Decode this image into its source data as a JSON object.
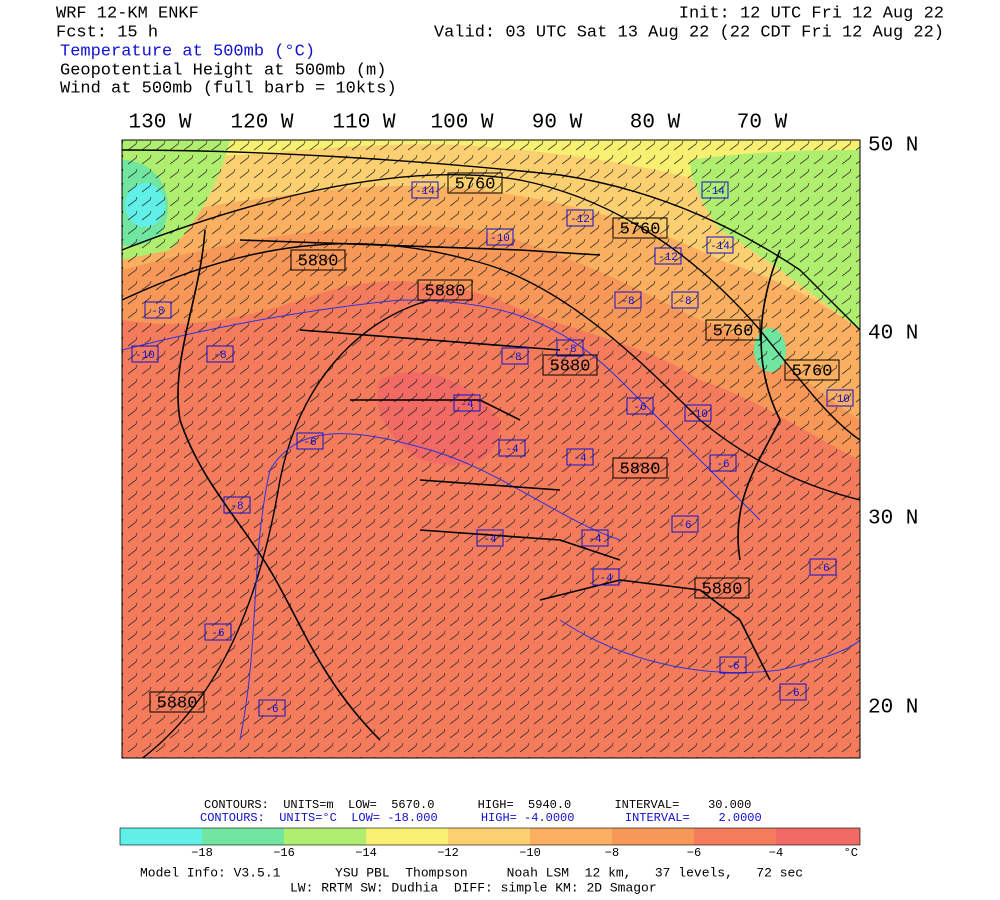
{
  "header": {
    "model": "WRF 12-KM ENKF",
    "init": "Init: 12 UTC Fri 12 Aug 22",
    "fcst": "Fcst:   15 h",
    "valid": "Valid: 03 UTC Sat 13 Aug 22 (22 CDT Fri 12 Aug 22)",
    "fields": [
      "Temperature at 500mb (°C)",
      "Geopotential Height at 500mb (m)",
      "Wind at 500mb (full barb = 10kts)"
    ]
  },
  "lon_labels": [
    "130 W",
    "120 W",
    "110 W",
    "100 W",
    "90 W",
    "80 W",
    "70 W"
  ],
  "lat_labels": [
    "50 N",
    "40 N",
    "30 N",
    "20 N"
  ],
  "height_labels": [
    "5760",
    "5760",
    "5760",
    "5760",
    "5880",
    "5880",
    "5880",
    "5880",
    "5880",
    "5880"
  ],
  "temp_labels": [
    "-14",
    "-14",
    "-14",
    "-12",
    "-12",
    "-10",
    "-10",
    "-10",
    "-10",
    "-8",
    "-8",
    "-8",
    "-8",
    "-8",
    "-8",
    "-8",
    "-6",
    "-6",
    "-6",
    "-6",
    "-6",
    "-6",
    "-6",
    "-6",
    "-6",
    "-4",
    "-4",
    "-4",
    "-4",
    "-4",
    "-4"
  ],
  "footer": {
    "height_contours": "CONTOURS:  UNITS=m  LOW=  5670.0      HIGH=  5940.0      INTERVAL=    30.000",
    "temp_contours": "CONTOURS:  UNITS=°C  LOW= -18.000      HIGH= -4.0000       INTERVAL=    2.0000",
    "colorbar_ticks": [
      "−18",
      "−16",
      "−14",
      "−12",
      "−10",
      "−8",
      "−6",
      "−4"
    ],
    "colorbar_unit": "°C",
    "model_info": "Model Info: V3.5.1       YSU PBL  Thompson     Noah LSM  12 km,   37 levels,   72 sec",
    "physics": "LW: RRTM SW: Dudhia  DIFF: simple KM: 2D Smagor"
  }
}
